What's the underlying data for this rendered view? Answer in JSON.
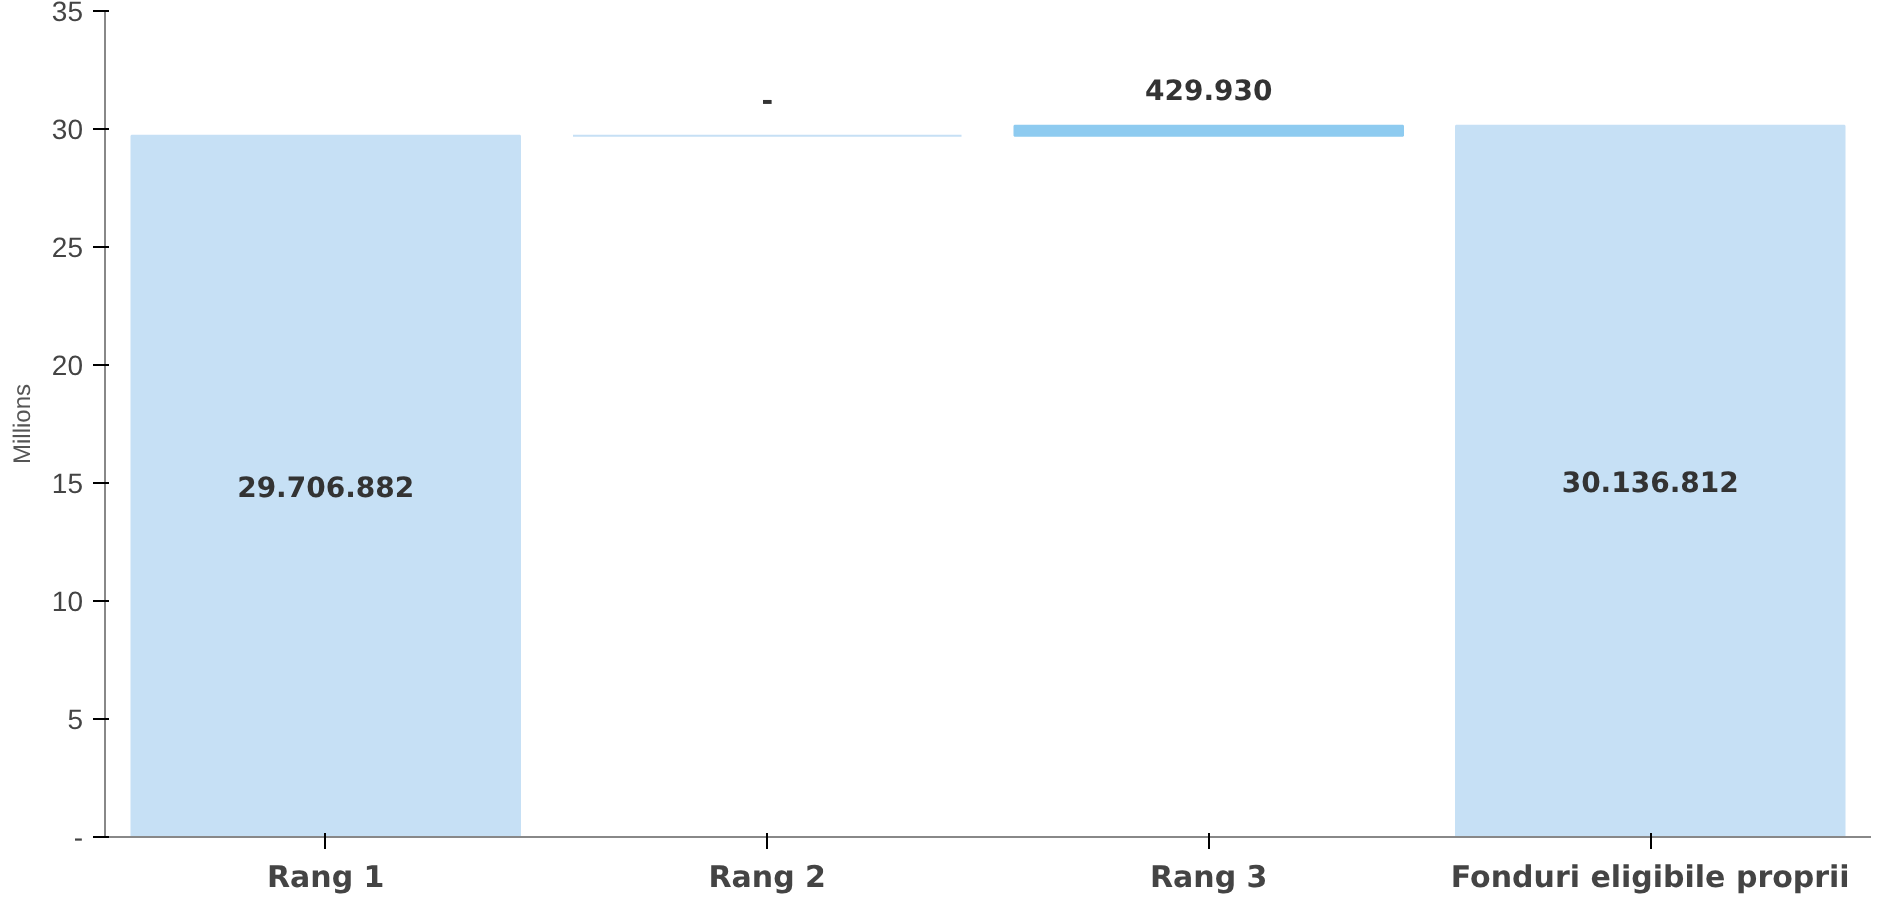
{
  "chart_data": {
    "type": "bar",
    "ylabel": "Millions",
    "categories": [
      "Rang 1",
      "Rang 2",
      "Rang 3",
      "Fonduri eligibile proprii"
    ],
    "values": [
      29.71,
      0,
      0.43,
      30.14
    ],
    "base": [
      0,
      29.71,
      29.71,
      0
    ],
    "colors": [
      "#c6e0f5",
      "#c6e0f5",
      "#8ecbf0",
      "#c6e0f5"
    ],
    "annotations": [
      "29.706.882",
      "-",
      "429.930",
      "30.136.812"
    ],
    "ylim": [
      0,
      35
    ],
    "yticks": [
      {
        "value": 0,
        "label": "-"
      },
      5,
      10,
      15,
      20,
      25,
      30,
      35
    ],
    "grid": false
  }
}
